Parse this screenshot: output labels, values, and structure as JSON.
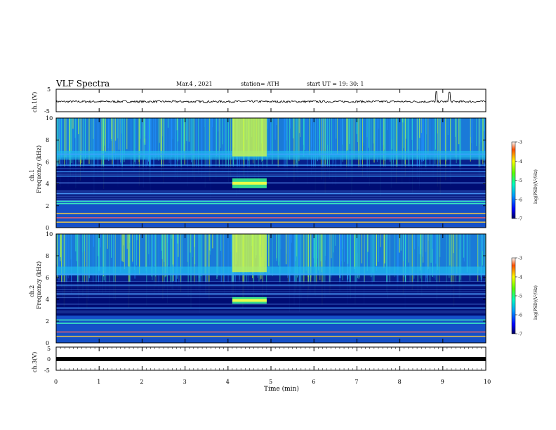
{
  "header": {
    "title": "VLF Spectra",
    "date": "Mar.4 , 2021",
    "station": "station= ATH",
    "start": "start UT = 19: 30: 1"
  },
  "colorbar_label": "log(PSD)(V²/Hz)",
  "colors": {
    "background_low": "#000a8c",
    "mid": "#20c8ff",
    "high": "#ffff00",
    "max": "#ff0000"
  },
  "chart_data": [
    {
      "id": "ch1-waveform",
      "type": "line",
      "ylabel": "ch.1(V)",
      "ylim": [
        -5,
        5
      ],
      "yticks": [
        "5",
        "-5"
      ],
      "xlim": [
        0,
        10
      ],
      "description_value": "noise trace around -0.5 V with spikes near 9 min",
      "baseline": -0.5
    },
    {
      "id": "ch1-spectrogram",
      "type": "heatmap",
      "ylabel_channel": "ch.1",
      "ylabel": "Frequency (kHz)",
      "ylim": [
        0,
        10
      ],
      "yticks": [
        "0",
        "2",
        "4",
        "6",
        "8",
        "10"
      ],
      "xlim": [
        0,
        10
      ],
      "colorbar": {
        "range": [
          -7,
          -3
        ],
        "ticks": [
          "-3",
          "-4",
          "-5",
          "-6",
          "-7"
        ]
      },
      "bands_khz": [
        0.5,
        0.9,
        1.3,
        2.2,
        2.4,
        3.1,
        4.7,
        5.1,
        5.7,
        6.7
      ],
      "event_window_min": [
        4.1,
        4.9
      ],
      "event_band_khz": [
        3.6,
        4.5
      ]
    },
    {
      "id": "ch2-spectrogram",
      "type": "heatmap",
      "ylabel_channel": "ch.2",
      "ylabel": "Frequency (kHz)",
      "ylim": [
        0,
        10
      ],
      "yticks": [
        "0",
        "2",
        "4",
        "6",
        "8",
        "10"
      ],
      "xlim": [
        0,
        10
      ],
      "colorbar": {
        "range": [
          -7,
          -3
        ],
        "ticks": [
          "-3",
          "-4",
          "-5",
          "-6",
          "-7"
        ]
      },
      "bands_khz": [
        0.6,
        1.0,
        1.8,
        2.1,
        3.2,
        4.5,
        5.3,
        6.3
      ],
      "event_window_min": [
        4.1,
        4.9
      ],
      "event_band_khz": [
        3.6,
        4.2
      ]
    },
    {
      "id": "ch3-waveform",
      "type": "line",
      "ylabel": "ch.3(V)",
      "ylim": [
        -5,
        5
      ],
      "yticks": [
        "5",
        "0",
        "-5"
      ],
      "xlim": [
        0,
        10
      ],
      "xlabel": "Time (min)",
      "xticks": [
        "0",
        "1",
        "2",
        "3",
        "4",
        "5",
        "6",
        "7",
        "8",
        "9",
        "10"
      ],
      "baseline": -0.2
    }
  ]
}
